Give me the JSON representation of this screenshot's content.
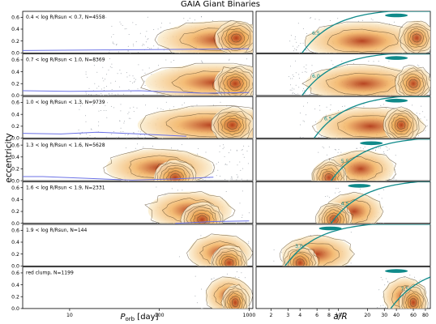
{
  "title": "GAIA Giant Binaries",
  "chart_data": {
    "type": "scatter",
    "title": "GAIA Giant Binaries",
    "ylabel": "eccentricity",
    "xlabel_left": "P_orb [day]",
    "xlabel_right": "a/R",
    "x_scale": "log",
    "ylim": [
      0,
      0.7
    ],
    "yticks": [
      0.0,
      0.2,
      0.4,
      0.6
    ],
    "yticklabels": [
      "0.0",
      "0.2",
      "0.4",
      "0.6"
    ],
    "left_xlim": [
      3,
      1100
    ],
    "left_xticks": [
      10,
      100,
      1000
    ],
    "left_xticklabels": [
      "10",
      "100",
      "1000"
    ],
    "right_xlim": [
      1.4,
      90
    ],
    "right_xticks": [
      2,
      3,
      4,
      6,
      8,
      10,
      20,
      30,
      40,
      60,
      80
    ],
    "right_xticklabels": [
      "2",
      "3",
      "4",
      "6",
      "8",
      "10",
      "20",
      "30",
      "40",
      "60",
      "80"
    ],
    "colors": {
      "density_light": "#fbf1d8",
      "density_mid": "#f2b15e",
      "density_dark": "#b33a16",
      "contour": "#5a4628",
      "envelope_line": "#6b72e6",
      "tidal_curve": "#0f8a8a",
      "dots": "#9aa0a8"
    },
    "panels": [
      {
        "label": "0.4 < log R/Rsun < 0.7, N=4558",
        "n": 4558,
        "curve_label": "6.5",
        "period_range": [
          25,
          1000
        ],
        "aR_range": [
          3,
          75
        ],
        "peak_period": 720,
        "peak_ecc": 0.25,
        "peak_aR": 65,
        "envelope": [
          [
            3,
            0.04
          ],
          [
            30,
            0.05
          ],
          [
            200,
            0.06
          ],
          [
            1000,
            0.07
          ]
        ]
      },
      {
        "label": "0.7 < log R/Rsun < 1.0, N=8369",
        "n": 8369,
        "curve_label": "6.0",
        "period_range": [
          15,
          1000
        ],
        "aR_range": [
          3,
          80
        ],
        "peak_period": 700,
        "peak_ecc": 0.2,
        "peak_aR": 60,
        "envelope": [
          [
            3,
            0.08
          ],
          [
            10,
            0.07
          ],
          [
            60,
            0.08
          ],
          [
            300,
            0.04
          ],
          [
            1000,
            0.05
          ]
        ]
      },
      {
        "label": "1.0 < log R/Rsun < 1.3, N=9739",
        "n": 9739,
        "curve_label": "6.5",
        "period_range": [
          12,
          1000
        ],
        "aR_range": [
          4,
          85
        ],
        "peak_period": 650,
        "peak_ecc": 0.22,
        "peak_aR": 45,
        "envelope": [
          [
            3,
            0.08
          ],
          [
            8,
            0.07
          ],
          [
            20,
            0.1
          ],
          [
            60,
            0.07
          ],
          [
            200,
            0.03
          ]
        ]
      },
      {
        "label": "1.3 < log R/Rsun < 1.6, N=5628",
        "n": 5628,
        "curve_label": "5.5",
        "period_range": [
          40,
          1000
        ],
        "aR_range": [
          6,
          40
        ],
        "peak_period": 150,
        "peak_ecc": 0.05,
        "peak_aR": 8,
        "envelope": [
          [
            3,
            0.07
          ],
          [
            5,
            0.07
          ],
          [
            50,
            0.01
          ],
          [
            150,
            0.03
          ],
          [
            400,
            0.06
          ]
        ]
      },
      {
        "label": "1.6 < log R/Rsun < 1.9, N=2331",
        "n": 2331,
        "curve_label": "4.5",
        "period_range": [
          80,
          1000
        ],
        "aR_range": [
          6,
          30
        ],
        "peak_period": 300,
        "peak_ecc": 0.06,
        "peak_aR": 9,
        "envelope": [
          [
            150,
            0.0
          ],
          [
            400,
            0.03
          ],
          [
            1000,
            0.04
          ]
        ]
      },
      {
        "label": "1.9 < log R/Rsun, N=144",
        "n": 144,
        "curve_label": "3.0",
        "period_range": [
          150,
          1000
        ],
        "aR_range": [
          2,
          15
        ],
        "peak_period": 600,
        "peak_ecc": 0.05,
        "peak_aR": 4,
        "envelope": []
      },
      {
        "label": "red clump, N=1199",
        "n": 1199,
        "curve_label": "7.5",
        "period_range": [
          250,
          1000
        ],
        "aR_range": [
          25,
          85
        ],
        "peak_period": 700,
        "peak_ecc": 0.1,
        "peak_aR": 60,
        "envelope": []
      }
    ]
  }
}
